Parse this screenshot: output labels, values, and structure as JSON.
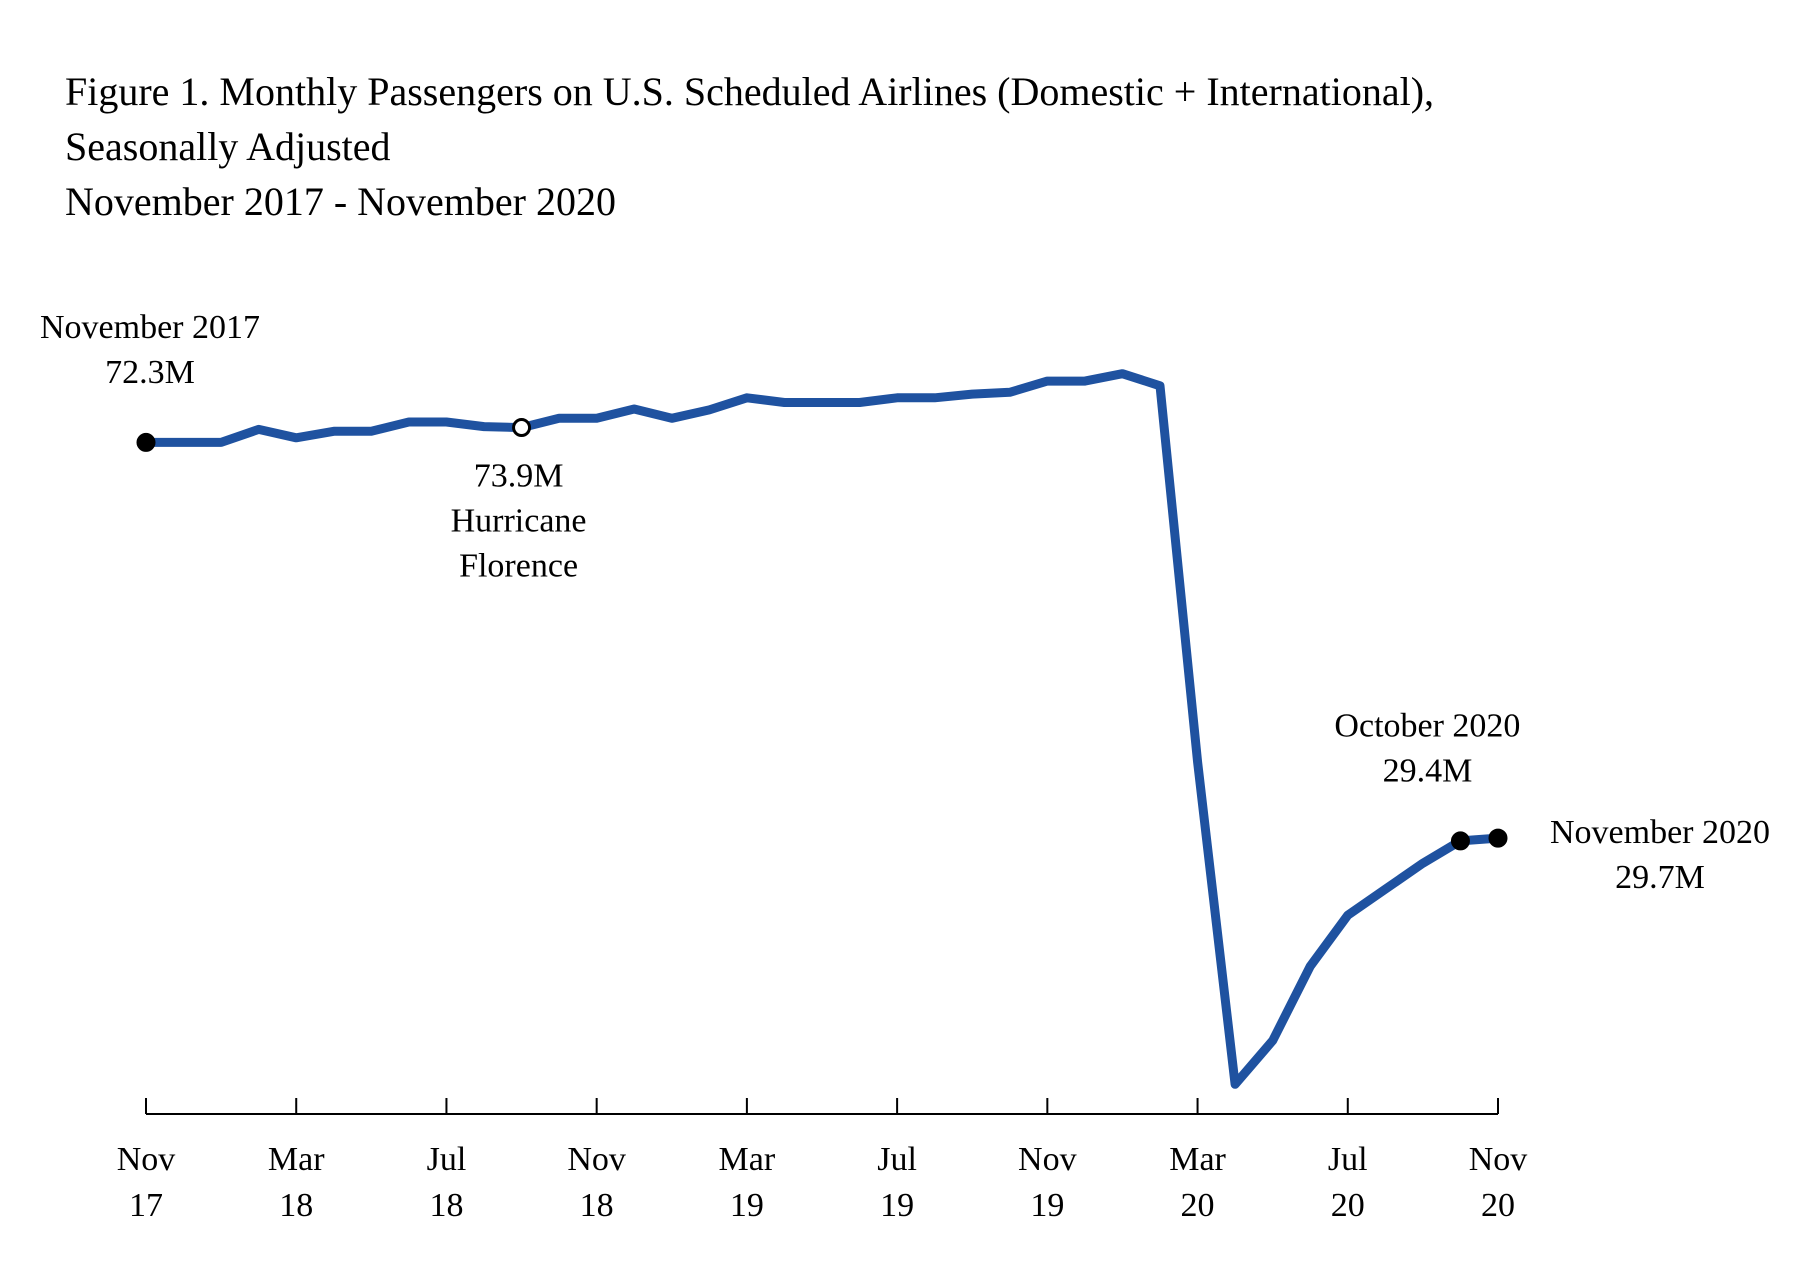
{
  "chart_data": {
    "type": "line",
    "title": [
      "Figure 1. Monthly Passengers on U.S. Scheduled Airlines (Domestic + International),",
      "Seasonally Adjusted",
      "November 2017 - November 2020"
    ],
    "categories": [
      [
        "Nov",
        "17"
      ],
      null,
      null,
      null,
      [
        "Mar",
        "18"
      ],
      null,
      null,
      null,
      [
        "Jul",
        "18"
      ],
      null,
      null,
      null,
      [
        "Nov",
        "18"
      ],
      null,
      null,
      null,
      [
        "Mar",
        "19"
      ],
      null,
      null,
      null,
      [
        "Jul",
        "19"
      ],
      null,
      null,
      null,
      [
        "Nov",
        "19"
      ],
      null,
      null,
      null,
      [
        "Mar",
        "20"
      ],
      null,
      null,
      null,
      [
        "Jul",
        "20"
      ],
      null,
      null,
      null,
      [
        "Nov",
        "20"
      ]
    ],
    "series": [
      {
        "color": "#1f52a0",
        "values": [
          72.3,
          72.3,
          72.3,
          73.7,
          72.8,
          73.5,
          73.5,
          74.5,
          74.5,
          74.0,
          73.9,
          74.9,
          74.9,
          75.9,
          74.9,
          75.8,
          77.1,
          76.6,
          76.6,
          76.6,
          77.1,
          77.1,
          77.5,
          77.7,
          78.9,
          78.9,
          79.7,
          78.4,
          37.9,
          3.2,
          7.9,
          15.9,
          21.4,
          24.2,
          27.0,
          29.4,
          29.7
        ],
        "value_labels": [
          "72.3M",
          null,
          null,
          null,
          null,
          null,
          null,
          null,
          null,
          null,
          "73.9M",
          null,
          null,
          null,
          null,
          null,
          null,
          null,
          null,
          null,
          null,
          null,
          null,
          null,
          null,
          null,
          null,
          null,
          null,
          null,
          null,
          null,
          null,
          null,
          null,
          "29.4M",
          "29.7M"
        ],
        "notes": [
          [
            "November 2017"
          ],
          null,
          null,
          null,
          null,
          null,
          null,
          null,
          null,
          null,
          [
            "Hurricane",
            "Florence"
          ],
          null,
          null,
          null,
          null,
          null,
          null,
          null,
          null,
          null,
          null,
          null,
          null,
          null,
          null,
          null,
          null,
          null,
          null,
          null,
          null,
          null,
          null,
          null,
          null,
          [
            "October 2020"
          ],
          [
            "November 2020"
          ]
        ]
      }
    ],
    "ylim": [
      0,
      90
    ]
  }
}
